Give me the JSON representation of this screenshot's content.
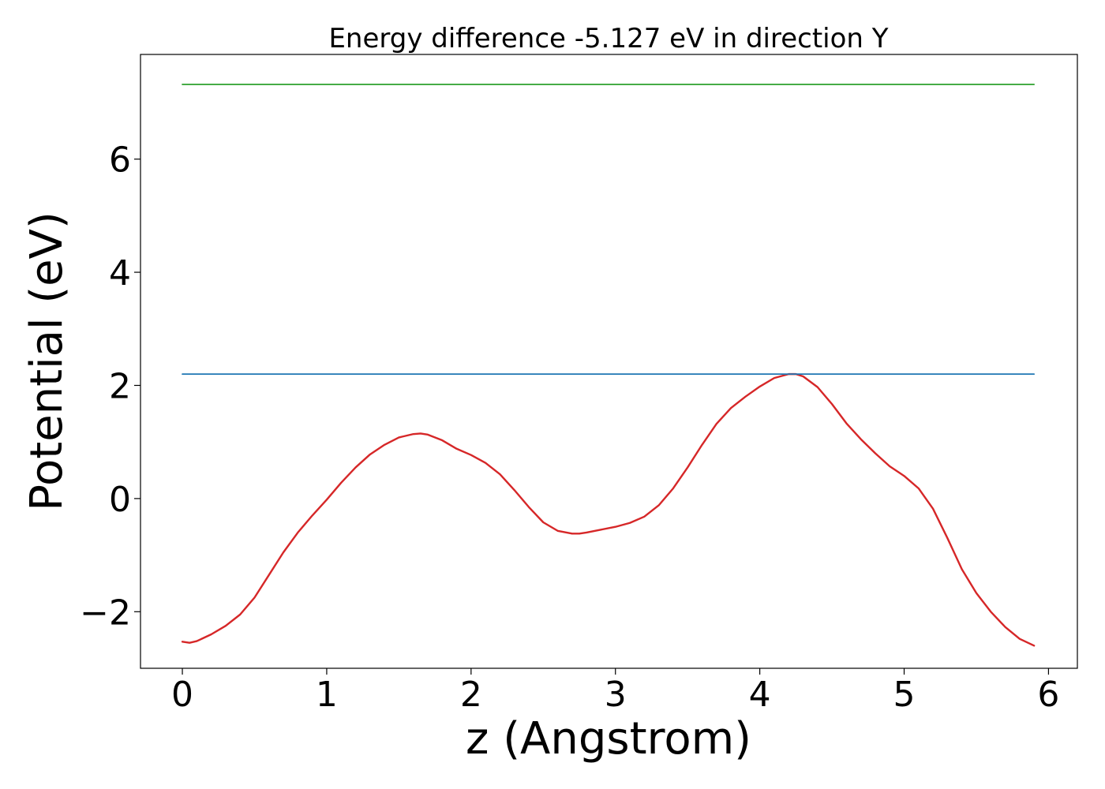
{
  "chart_data": {
    "type": "line",
    "title": "Energy difference -5.127 eV in direction Y",
    "xlabel": "z (Angstrom)",
    "ylabel": "Potential (eV)",
    "xlim": [
      -0.29,
      6.2
    ],
    "ylim": [
      -3.0,
      7.85
    ],
    "xticks": [
      0,
      1,
      2,
      3,
      4,
      5,
      6
    ],
    "yticks": [
      -2,
      0,
      2,
      4,
      6
    ],
    "grid": false,
    "series": [
      {
        "color": "#d62728",
        "x": [
          0.0,
          0.05,
          0.1,
          0.2,
          0.3,
          0.4,
          0.5,
          0.6,
          0.7,
          0.8,
          0.9,
          1.0,
          1.1,
          1.2,
          1.3,
          1.4,
          1.5,
          1.6,
          1.65,
          1.7,
          1.8,
          1.9,
          2.0,
          2.1,
          2.2,
          2.3,
          2.4,
          2.5,
          2.6,
          2.7,
          2.75,
          2.8,
          2.9,
          3.0,
          3.1,
          3.2,
          3.3,
          3.4,
          3.5,
          3.6,
          3.7,
          3.8,
          3.9,
          4.0,
          4.1,
          4.2,
          4.25,
          4.3,
          4.4,
          4.5,
          4.6,
          4.7,
          4.8,
          4.9,
          5.0,
          5.1,
          5.2,
          5.3,
          5.4,
          5.5,
          5.6,
          5.7,
          5.8,
          5.9
        ],
        "y": [
          -2.53,
          -2.55,
          -2.52,
          -2.4,
          -2.25,
          -2.05,
          -1.75,
          -1.35,
          -0.95,
          -0.6,
          -0.3,
          -0.02,
          0.28,
          0.55,
          0.78,
          0.95,
          1.08,
          1.14,
          1.15,
          1.13,
          1.03,
          0.88,
          0.77,
          0.63,
          0.43,
          0.15,
          -0.15,
          -0.42,
          -0.57,
          -0.62,
          -0.62,
          -0.6,
          -0.55,
          -0.5,
          -0.43,
          -0.32,
          -0.12,
          0.18,
          0.55,
          0.95,
          1.32,
          1.6,
          1.8,
          1.98,
          2.13,
          2.2,
          2.2,
          2.16,
          1.97,
          1.67,
          1.33,
          1.05,
          0.8,
          0.57,
          0.4,
          0.18,
          -0.18,
          -0.7,
          -1.25,
          -1.67,
          -2.0,
          -2.27,
          -2.48,
          -2.6
        ]
      },
      {
        "color": "#1f77b4",
        "x": [
          0.0,
          5.9
        ],
        "y": [
          2.2,
          2.2
        ]
      },
      {
        "color": "#2ca02c",
        "x": [
          0.0,
          5.9
        ],
        "y": [
          7.32,
          7.32
        ]
      }
    ]
  }
}
